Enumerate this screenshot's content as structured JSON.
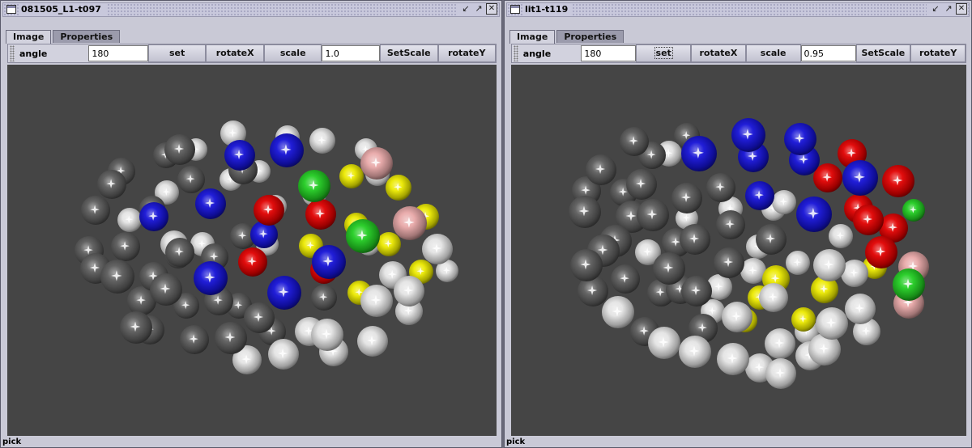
{
  "colors": {
    "gray": "#5c5c5c",
    "white": "#e4e4e4",
    "blue": "#1512d6",
    "red": "#e00000",
    "yellow": "#ecea00",
    "green": "#22cc22",
    "pink": "#e8a8a8",
    "canvas_bg": "#454545"
  },
  "windows": [
    {
      "title": "081505_L1-t097",
      "controls": [
        "restore-icon",
        "maximize-icon",
        "close-icon"
      ],
      "tabs": [
        {
          "label": "Image",
          "active": true
        },
        {
          "label": "Properties",
          "active": false
        }
      ],
      "toolbar": {
        "angle_label": "angle",
        "angle_value": "180",
        "set_label": "set",
        "rotatex_label": "rotateX",
        "scale_label": "scale",
        "scale_value": "1.0",
        "setscale_label": "SetScale",
        "rotatey_label": "rotateY"
      },
      "status": "pick",
      "spheres": [
        [
          "gray",
          150,
          212,
          17
        ],
        [
          "gray",
          138,
          228,
          18
        ],
        [
          "gray",
          118,
          260,
          18
        ],
        [
          "white",
          160,
          272,
          15
        ],
        [
          "gray",
          188,
          258,
          16
        ],
        [
          "white",
          206,
          238,
          15
        ],
        [
          "gray",
          236,
          222,
          17
        ],
        [
          "white",
          242,
          185,
          14
        ],
        [
          "gray",
          205,
          192,
          16
        ],
        [
          "gray",
          222,
          185,
          19
        ],
        [
          "white",
          288,
          165,
          16
        ],
        [
          "white",
          355,
          170,
          15
        ],
        [
          "white",
          398,
          174,
          16
        ],
        [
          "gray",
          300,
          210,
          18
        ],
        [
          "white",
          320,
          212,
          14
        ],
        [
          "white",
          285,
          222,
          14
        ],
        [
          "white",
          340,
          255,
          14
        ],
        [
          "white",
          388,
          240,
          15
        ],
        [
          "white",
          452,
          185,
          14
        ],
        [
          "white",
          466,
          215,
          15
        ],
        [
          "white",
          215,
          302,
          17
        ],
        [
          "gray",
          222,
          312,
          18
        ],
        [
          "white",
          250,
          302,
          15
        ],
        [
          "gray",
          265,
          318,
          17
        ],
        [
          "gray",
          300,
          292,
          16
        ],
        [
          "white",
          330,
          302,
          14
        ],
        [
          "gray",
          110,
          310,
          18
        ],
        [
          "gray",
          118,
          332,
          19
        ],
        [
          "gray",
          145,
          342,
          21
        ],
        [
          "gray",
          175,
          372,
          18
        ],
        [
          "gray",
          190,
          342,
          18
        ],
        [
          "gray",
          205,
          358,
          20
        ],
        [
          "gray",
          230,
          378,
          16
        ],
        [
          "gray",
          270,
          372,
          18
        ],
        [
          "gray",
          295,
          378,
          16
        ],
        [
          "gray",
          185,
          408,
          18
        ],
        [
          "gray",
          168,
          405,
          20
        ],
        [
          "gray",
          240,
          420,
          18
        ],
        [
          "gray",
          285,
          418,
          20
        ],
        [
          "gray",
          320,
          393,
          19
        ],
        [
          "gray",
          336,
          410,
          17
        ],
        [
          "white",
          305,
          445,
          18
        ],
        [
          "white",
          350,
          438,
          19
        ],
        [
          "white",
          382,
          410,
          18
        ],
        [
          "white",
          412,
          435,
          18
        ],
        [
          "white",
          404,
          414,
          20
        ],
        [
          "gray",
          400,
          368,
          16
        ],
        [
          "white",
          460,
          422,
          19
        ],
        [
          "white",
          485,
          340,
          17
        ],
        [
          "white",
          505,
          385,
          17
        ],
        [
          "white",
          465,
          372,
          20
        ],
        [
          "white",
          505,
          360,
          19
        ],
        [
          "white",
          540,
          308,
          19
        ],
        [
          "white",
          552,
          335,
          14
        ],
        [
          "gray",
          155,
          305,
          18
        ],
        [
          "gray",
          220,
          316,
          16
        ],
        [
          "white",
          455,
          302,
          14
        ],
        [
          "blue",
          296,
          192,
          19
        ],
        [
          "blue",
          354,
          186,
          21
        ],
        [
          "blue",
          190,
          268,
          18
        ],
        [
          "blue",
          260,
          252,
          19
        ],
        [
          "blue",
          326,
          290,
          17
        ],
        [
          "blue",
          260,
          344,
          21
        ],
        [
          "blue",
          351,
          362,
          21
        ],
        [
          "blue",
          406,
          324,
          21
        ],
        [
          "red",
          332,
          260,
          19
        ],
        [
          "red",
          396,
          265,
          19
        ],
        [
          "red",
          312,
          324,
          18
        ],
        [
          "red",
          400,
          334,
          17
        ],
        [
          "yellow",
          434,
          218,
          15
        ],
        [
          "yellow",
          492,
          232,
          16
        ],
        [
          "yellow",
          526,
          268,
          16
        ],
        [
          "yellow",
          440,
          278,
          15
        ],
        [
          "yellow",
          384,
          304,
          15
        ],
        [
          "yellow",
          480,
          302,
          15
        ],
        [
          "yellow",
          520,
          336,
          15
        ],
        [
          "yellow",
          444,
          362,
          15
        ],
        [
          "green",
          388,
          230,
          20
        ],
        [
          "green",
          448,
          292,
          21
        ],
        [
          "pink",
          465,
          202,
          20
        ],
        [
          "pink",
          506,
          276,
          21
        ]
      ]
    },
    {
      "title": "lit1-t119",
      "controls": [
        "restore-icon",
        "maximize-icon",
        "close-icon"
      ],
      "tabs": [
        {
          "label": "Image",
          "active": true
        },
        {
          "label": "Properties",
          "active": false
        }
      ],
      "toolbar": {
        "angle_label": "angle",
        "angle_value": "180",
        "set_label": "set",
        "rotatex_label": "rotateX",
        "scale_label": "scale",
        "scale_value": "0.95",
        "setscale_label": "SetScale",
        "rotatey_label": "rotateY"
      },
      "status": "pick",
      "spheres": [
        [
          "gray",
          783,
          175,
          18
        ],
        [
          "gray",
          805,
          192,
          17
        ],
        [
          "gray",
          848,
          168,
          16
        ],
        [
          "gray",
          742,
          210,
          19
        ],
        [
          "gray",
          724,
          236,
          18
        ],
        [
          "gray",
          722,
          262,
          20
        ],
        [
          "gray",
          792,
          228,
          19
        ],
        [
          "gray",
          770,
          238,
          17
        ],
        [
          "gray",
          848,
          245,
          19
        ],
        [
          "gray",
          890,
          232,
          18
        ],
        [
          "gray",
          780,
          268,
          20
        ],
        [
          "gray",
          806,
          266,
          20
        ],
        [
          "gray",
          760,
          298,
          20
        ],
        [
          "gray",
          745,
          310,
          20
        ],
        [
          "gray",
          835,
          300,
          18
        ],
        [
          "gray",
          858,
          296,
          19
        ],
        [
          "gray",
          902,
          278,
          18
        ],
        [
          "gray",
          952,
          296,
          19
        ],
        [
          "gray",
          900,
          325,
          19
        ],
        [
          "gray",
          826,
          332,
          20
        ],
        [
          "gray",
          772,
          345,
          18
        ],
        [
          "gray",
          732,
          360,
          19
        ],
        [
          "gray",
          724,
          328,
          20
        ],
        [
          "gray",
          816,
          362,
          17
        ],
        [
          "gray",
          840,
          358,
          18
        ],
        [
          "gray",
          860,
          360,
          19
        ],
        [
          "gray",
          796,
          410,
          18
        ],
        [
          "gray",
          868,
          406,
          18
        ],
        [
          "white",
          826,
          190,
          16
        ],
        [
          "white",
          902,
          258,
          15
        ],
        [
          "white",
          955,
          258,
          15
        ],
        [
          "white",
          968,
          250,
          15
        ],
        [
          "white",
          800,
          312,
          16
        ],
        [
          "white",
          848,
          270,
          14
        ],
        [
          "white",
          936,
          305,
          15
        ],
        [
          "white",
          985,
          325,
          15
        ],
        [
          "white",
          1024,
          328,
          20
        ],
        [
          "white",
          1055,
          338,
          17
        ],
        [
          "white",
          1038,
          292,
          15
        ],
        [
          "white",
          888,
          355,
          16
        ],
        [
          "white",
          930,
          335,
          16
        ],
        [
          "white",
          955,
          368,
          18
        ],
        [
          "white",
          910,
          392,
          19
        ],
        [
          "white",
          763,
          386,
          20
        ],
        [
          "white",
          820,
          424,
          20
        ],
        [
          "white",
          858,
          435,
          20
        ],
        [
          "white",
          905,
          444,
          20
        ],
        [
          "white",
          938,
          455,
          18
        ],
        [
          "white",
          963,
          425,
          19
        ],
        [
          "white",
          964,
          462,
          19
        ],
        [
          "white",
          1000,
          440,
          18
        ],
        [
          "white",
          1018,
          432,
          20
        ],
        [
          "white",
          1027,
          400,
          20
        ],
        [
          "white",
          1062,
          382,
          19
        ],
        [
          "white",
          1070,
          410,
          17
        ],
        [
          "white",
          996,
          410,
          15
        ],
        [
          "white",
          880,
          385,
          15
        ],
        [
          "blue",
          863,
          190,
          22
        ],
        [
          "blue",
          924,
          167,
          21
        ],
        [
          "blue",
          930,
          194,
          19
        ],
        [
          "blue",
          988,
          172,
          20
        ],
        [
          "blue",
          993,
          198,
          19
        ],
        [
          "blue",
          938,
          242,
          18
        ],
        [
          "blue",
          1005,
          265,
          22
        ],
        [
          "blue",
          1062,
          220,
          22
        ],
        [
          "red",
          1052,
          190,
          18
        ],
        [
          "red",
          1022,
          220,
          18
        ],
        [
          "red",
          1109,
          224,
          20
        ],
        [
          "red",
          1060,
          258,
          18
        ],
        [
          "red",
          1072,
          272,
          19
        ],
        [
          "red",
          1103,
          282,
          18
        ],
        [
          "red",
          1088,
          312,
          20
        ],
        [
          "yellow",
          958,
          345,
          17
        ],
        [
          "yellow",
          938,
          368,
          15
        ],
        [
          "yellow",
          1018,
          358,
          17
        ],
        [
          "yellow",
          992,
          395,
          15
        ],
        [
          "yellow",
          920,
          396,
          15
        ],
        [
          "yellow",
          1080,
          330,
          15
        ],
        [
          "green",
          1128,
          260,
          14
        ],
        [
          "green",
          1122,
          352,
          20
        ],
        [
          "pink",
          1128,
          330,
          19
        ],
        [
          "pink",
          1122,
          375,
          19
        ]
      ]
    }
  ]
}
